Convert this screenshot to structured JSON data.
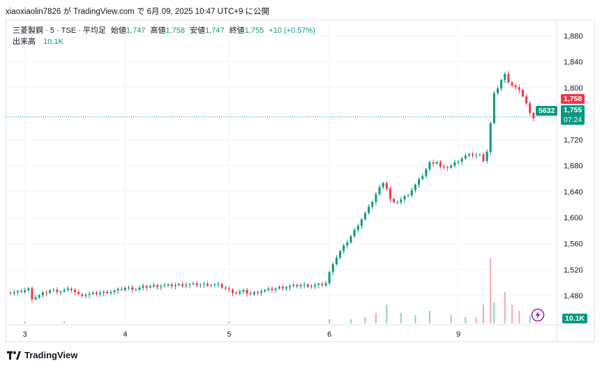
{
  "caption": "xiaoxiaolin7826 が TradingView.com で 6月 09, 2025 10:47 UTC+9 に公開",
  "legend": {
    "symbol": "三菱製鋼 · 5 · TSE · 平均足",
    "open_label": "始値",
    "open": "1,747",
    "high_label": "高値",
    "high": "1,758",
    "low_label": "安値",
    "low": "1,747",
    "close_label": "終値",
    "close": "1,755",
    "change": "+10 (+0.57%)",
    "volume_label": "出来高",
    "volume": "10.1K"
  },
  "price_labels": {
    "high_tag": "1,758",
    "last_price": "1,755",
    "countdown": "07:24",
    "side_tag": "5632",
    "volume_tag": "10.1K"
  },
  "footer": {
    "brand": "TradingView"
  },
  "colors": {
    "up": "#089981",
    "down": "#f23645",
    "grid": "#f0f3fa",
    "text": "#131722"
  },
  "chart_data": {
    "type": "candlestick",
    "ylim": [
      1450,
      1890
    ],
    "yticks": [
      1480,
      1520,
      1560,
      1600,
      1640,
      1680,
      1720,
      1760,
      1800,
      1840,
      1880
    ],
    "ytick_labels": [
      "1,480",
      "1,520",
      "1,560",
      "1,600",
      "1,640",
      "1,680",
      "1,720",
      "",
      "1,800",
      "1,840",
      "1,880"
    ],
    "xtick_labels": [
      "3",
      "4",
      "5",
      "6",
      "9"
    ],
    "xtick_index": [
      5,
      33,
      62,
      90,
      126
    ],
    "last_price": 1755,
    "price_path": [
      [
        0,
        1484
      ],
      [
        3,
        1485
      ],
      [
        6,
        1490
      ],
      [
        7,
        1476
      ],
      [
        9,
        1480
      ],
      [
        12,
        1488
      ],
      [
        15,
        1487
      ],
      [
        18,
        1490
      ],
      [
        20,
        1481
      ],
      [
        23,
        1482
      ],
      [
        26,
        1484
      ],
      [
        29,
        1486
      ],
      [
        31,
        1488
      ],
      [
        33,
        1492
      ],
      [
        36,
        1490
      ],
      [
        38,
        1493
      ],
      [
        41,
        1495
      ],
      [
        44,
        1495
      ],
      [
        47,
        1496
      ],
      [
        50,
        1497
      ],
      [
        53,
        1497
      ],
      [
        56,
        1497
      ],
      [
        59,
        1496
      ],
      [
        62,
        1488
      ],
      [
        64,
        1484
      ],
      [
        66,
        1487
      ],
      [
        68,
        1482
      ],
      [
        70,
        1486
      ],
      [
        73,
        1489
      ],
      [
        76,
        1492
      ],
      [
        79,
        1494
      ],
      [
        82,
        1496
      ],
      [
        85,
        1495
      ],
      [
        88,
        1497
      ],
      [
        89,
        1499
      ],
      [
        90,
        1515
      ],
      [
        91,
        1530
      ],
      [
        93,
        1548
      ],
      [
        95,
        1563
      ],
      [
        97,
        1580
      ],
      [
        99,
        1598
      ],
      [
        101,
        1615
      ],
      [
        103,
        1636
      ],
      [
        105,
        1655
      ],
      [
        106,
        1645
      ],
      [
        107,
        1628
      ],
      [
        108,
        1622
      ],
      [
        110,
        1628
      ],
      [
        112,
        1636
      ],
      [
        114,
        1650
      ],
      [
        116,
        1665
      ],
      [
        118,
        1684
      ],
      [
        120,
        1686
      ],
      [
        121,
        1678
      ],
      [
        122,
        1676
      ],
      [
        124,
        1680
      ],
      [
        126,
        1688
      ],
      [
        128,
        1695
      ],
      [
        130,
        1697
      ],
      [
        132,
        1696
      ],
      [
        133,
        1689
      ],
      [
        134,
        1702
      ],
      [
        135,
        1745
      ],
      [
        136,
        1790
      ],
      [
        137,
        1800
      ],
      [
        138,
        1812
      ],
      [
        139,
        1820
      ],
      [
        140,
        1810
      ],
      [
        141,
        1804
      ],
      [
        142,
        1800
      ],
      [
        143,
        1795
      ],
      [
        144,
        1788
      ],
      [
        145,
        1776
      ],
      [
        146,
        1760
      ],
      [
        147,
        1755
      ]
    ],
    "volume": [
      [
        "x",
        5,
        1
      ],
      [
        "x",
        16,
        1
      ],
      [
        "x",
        62,
        1
      ],
      [
        "x",
        90,
        2
      ],
      [
        "x",
        96,
        2
      ],
      [
        "x",
        100,
        3
      ],
      [
        "x",
        103,
        5
      ],
      [
        "x",
        106,
        9
      ],
      [
        "x",
        110,
        5
      ],
      [
        "x",
        114,
        4
      ],
      [
        "x",
        118,
        6
      ],
      [
        "x",
        124,
        4
      ],
      [
        "x",
        128,
        3
      ],
      [
        "x",
        131,
        3
      ],
      [
        "x",
        133,
        9
      ],
      [
        "x",
        135,
        31
      ],
      [
        "x",
        136,
        10
      ],
      [
        "x",
        139,
        15
      ],
      [
        "x",
        141,
        9
      ],
      [
        "x",
        143,
        6
      ],
      [
        "x",
        146,
        4
      ]
    ]
  }
}
